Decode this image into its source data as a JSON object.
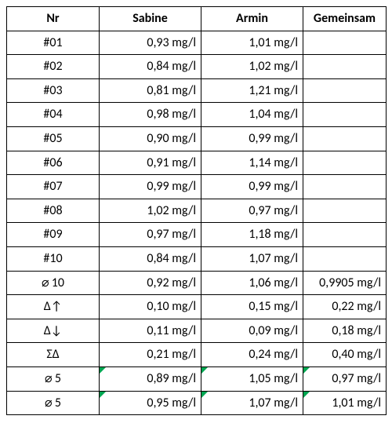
{
  "table": {
    "type": "table",
    "columns": [
      "Nr",
      "Sabine",
      "Armin",
      "Gemeinsam"
    ],
    "column_align": [
      "center",
      "right",
      "right",
      "right"
    ],
    "rows": [
      {
        "nr": "#01",
        "sabine": "0,93 mg/l",
        "armin": "1,01 mg/l",
        "gemeinsam": ""
      },
      {
        "nr": "#02",
        "sabine": "0,84 mg/l",
        "armin": "1,02 mg/l",
        "gemeinsam": ""
      },
      {
        "nr": "#03",
        "sabine": "0,81 mg/l",
        "armin": "1,21 mg/l",
        "gemeinsam": ""
      },
      {
        "nr": "#04",
        "sabine": "0,98 mg/l",
        "armin": "1,04 mg/l",
        "gemeinsam": ""
      },
      {
        "nr": "#05",
        "sabine": "0,90 mg/l",
        "armin": "0,99 mg/l",
        "gemeinsam": ""
      },
      {
        "nr": "#06",
        "sabine": "0,91 mg/l",
        "armin": "1,14 mg/l",
        "gemeinsam": ""
      },
      {
        "nr": "#07",
        "sabine": "0,99 mg/l",
        "armin": "0,99 mg/l",
        "gemeinsam": ""
      },
      {
        "nr": "#08",
        "sabine": "1,02 mg/l",
        "armin": "0,97 mg/l",
        "gemeinsam": ""
      },
      {
        "nr": "#09",
        "sabine": "0,97 mg/l",
        "armin": "1,18 mg/l",
        "gemeinsam": ""
      },
      {
        "nr": "#10",
        "sabine": "0,84 mg/l",
        "armin": "1,07 mg/l",
        "gemeinsam": ""
      },
      {
        "nr": "⌀ 10",
        "sabine": "0,92 mg/l",
        "armin": "1,06 mg/l",
        "gemeinsam": "0,9905 mg/l"
      },
      {
        "nr": "Δ↑",
        "sabine": "0,10 mg/l",
        "armin": "0,15 mg/l",
        "gemeinsam": "0,22 mg/l"
      },
      {
        "nr": "Δ↓",
        "sabine": "0,11 mg/l",
        "armin": "0,09 mg/l",
        "gemeinsam": "0,18 mg/l"
      },
      {
        "nr": "ΣΔ",
        "sabine": "0,21 mg/l",
        "armin": "0,24 mg/l",
        "gemeinsam": "0,40 mg/l"
      },
      {
        "nr": "⌀ 5",
        "sabine": "0,89 mg/l",
        "armin": "1,05 mg/l",
        "gemeinsam": "0,97 mg/l",
        "mark": [
          "sabine",
          "armin",
          "gemeinsam"
        ]
      },
      {
        "nr": "⌀ 5",
        "sabine": "0,95 mg/l",
        "armin": "1,07 mg/l",
        "gemeinsam": "1,01 mg/l",
        "mark": [
          "sabine",
          "armin",
          "gemeinsam"
        ]
      }
    ],
    "border_color": "#000000",
    "background_color": "#ffffff",
    "font_family": "Calibri",
    "font_size_pt": 12,
    "marker_color": "#00a651"
  }
}
